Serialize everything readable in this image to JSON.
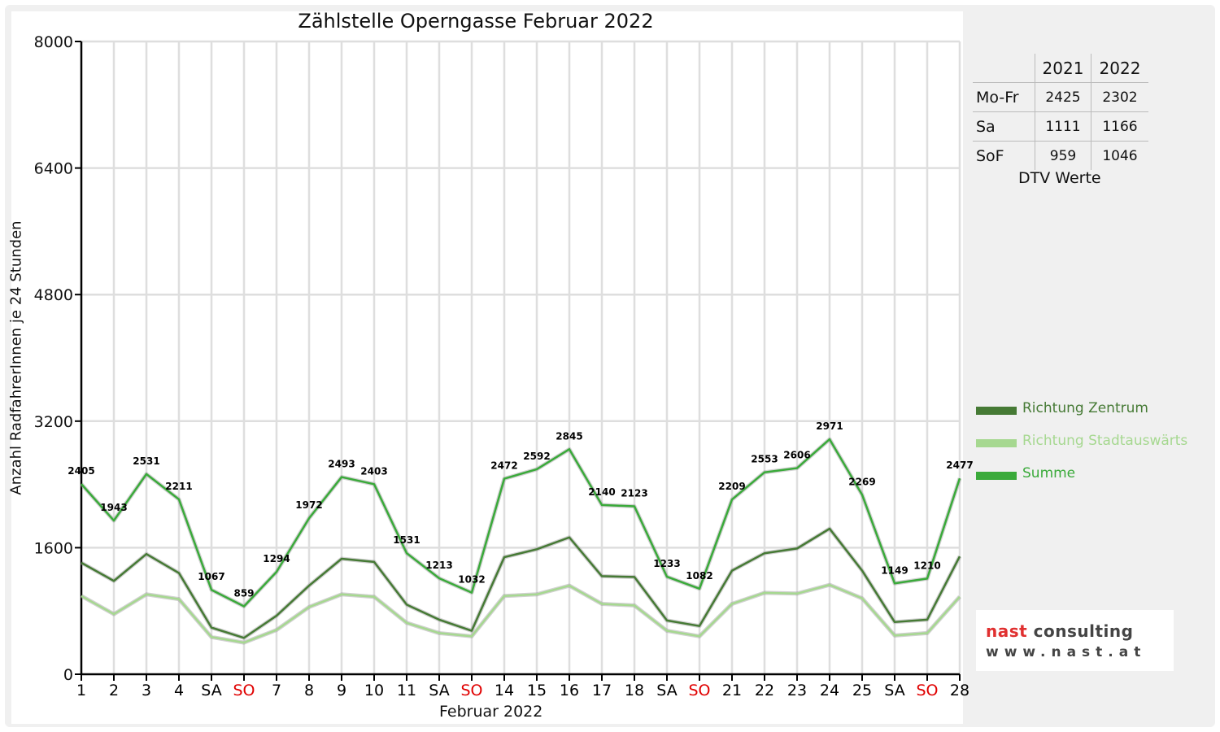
{
  "chart_data": {
    "type": "line",
    "title": "Zählstelle Operngasse Februar 2022",
    "xlabel": "Februar 2022",
    "ylabel": "Anzahl RadfahrerInnen je 24 Stunden",
    "ylim": [
      0,
      8000
    ],
    "yticks": [
      0,
      1600,
      3200,
      4800,
      6400,
      8000
    ],
    "grid": true,
    "legend_position": "right",
    "categories": [
      "1",
      "2",
      "3",
      "4",
      "SA",
      "SO",
      "7",
      "8",
      "9",
      "10",
      "11",
      "SA",
      "SO",
      "14",
      "15",
      "16",
      "17",
      "18",
      "SA",
      "SO",
      "21",
      "22",
      "23",
      "24",
      "25",
      "SA",
      "SO",
      "28"
    ],
    "category_colors": [
      "#000",
      "#000",
      "#000",
      "#000",
      "#000",
      "#e00000",
      "#000",
      "#000",
      "#000",
      "#000",
      "#000",
      "#000",
      "#e00000",
      "#000",
      "#000",
      "#000",
      "#000",
      "#000",
      "#000",
      "#e00000",
      "#000",
      "#000",
      "#000",
      "#000",
      "#000",
      "#000",
      "#e00000",
      "#000"
    ],
    "series": [
      {
        "name": "Richtung Zentrum",
        "color": "#467a35",
        "values": [
          1410,
          1180,
          1520,
          1280,
          590,
          460,
          740,
          1120,
          1460,
          1420,
          880,
          690,
          550,
          1480,
          1580,
          1730,
          1240,
          1230,
          680,
          610,
          1310,
          1530,
          1590,
          1840,
          1310,
          660,
          690,
          1490
        ]
      },
      {
        "name": "Richtung Stadtauswärts",
        "color": "#a6d890",
        "values": [
          990,
          760,
          1010,
          950,
          470,
          400,
          560,
          850,
          1010,
          980,
          650,
          520,
          480,
          990,
          1010,
          1120,
          890,
          870,
          550,
          480,
          890,
          1030,
          1020,
          1130,
          960,
          490,
          520,
          980
        ]
      },
      {
        "name": "Summe",
        "color": "#3aaa3a",
        "values": [
          2405,
          1943,
          2531,
          2211,
          1067,
          859,
          1294,
          1972,
          2493,
          2403,
          1531,
          1213,
          1032,
          2472,
          2592,
          2845,
          2140,
          2123,
          1233,
          1082,
          2209,
          2553,
          2606,
          2971,
          2269,
          1149,
          1210,
          2477
        ],
        "show_labels": true
      }
    ]
  },
  "dtv_table": {
    "header": [
      "",
      "2021",
      "2022"
    ],
    "rows": [
      {
        "label": "Mo-Fr",
        "v2021": "2425",
        "v2022": "2302"
      },
      {
        "label": "Sa",
        "v2021": "1111",
        "v2022": "1166"
      },
      {
        "label": "SoF",
        "v2021": "959",
        "v2022": "1046"
      }
    ],
    "caption": "DTV Werte"
  },
  "logo": {
    "line1_part1": "nast",
    "line1_part2": " consulting",
    "line2": "www.nast.at",
    "color1": "#e03030",
    "color2": "#444444"
  }
}
